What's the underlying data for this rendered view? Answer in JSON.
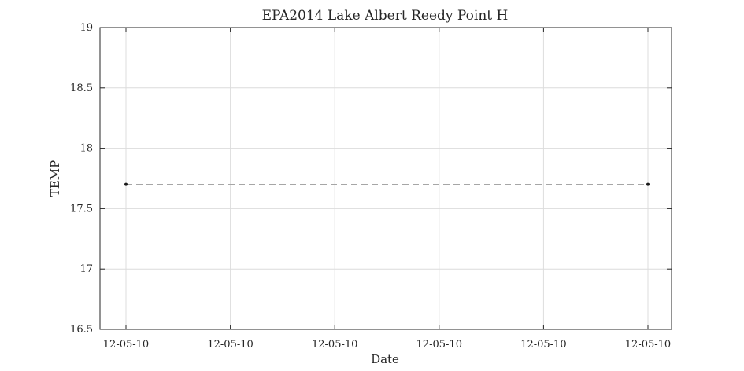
{
  "chart_data": {
    "type": "line",
    "title": "EPA2014 Lake Albert Reedy Point H",
    "xlabel": "Date",
    "ylabel": "TEMP",
    "ylim": [
      16.5,
      19
    ],
    "yticks": [
      "16.5",
      "17",
      "17.5",
      "18",
      "18.5",
      "19"
    ],
    "xticks": [
      "12-05-10",
      "12-05-10",
      "12-05-10",
      "12-05-10",
      "12-05-10",
      "12-05-10"
    ],
    "grid": true,
    "series": [
      {
        "x": [
          "12-05-10",
          "12-05-10"
        ],
        "y": [
          17.7,
          17.7
        ]
      }
    ],
    "colors": {
      "line": "#a6a6a6",
      "marker": "#1a1a1a",
      "grid": "#dcdcdc",
      "axes": "#262626"
    }
  }
}
